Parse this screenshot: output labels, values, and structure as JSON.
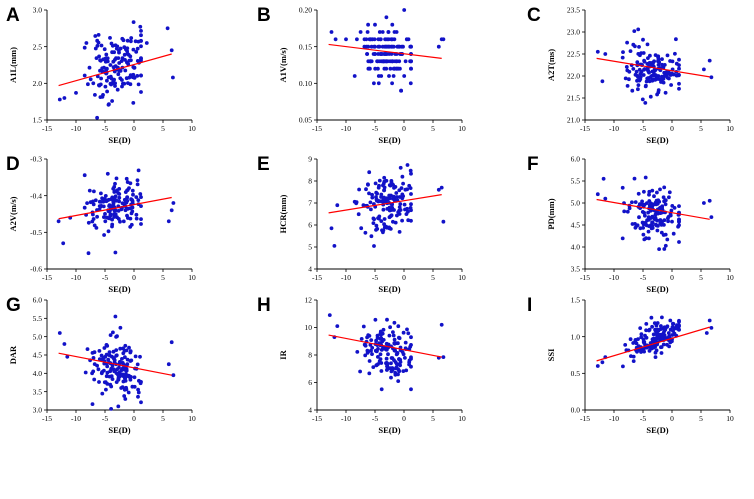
{
  "chart_data": [
    {
      "panel": "A",
      "type": "scatter",
      "xlabel": "SE(D)",
      "ylabel": "A1L(mm)",
      "xlim": [
        -15,
        10
      ],
      "ylim": [
        1.5,
        3.0
      ],
      "xticks": [
        "-15",
        "-10",
        "-5",
        "0",
        "5",
        "10"
      ],
      "yticks": [
        "1.5",
        "2.0",
        "2.5",
        "3.0"
      ],
      "fit": {
        "x": [
          -13,
          6.5
        ],
        "y": [
          1.97,
          2.4
        ]
      },
      "points": {
        "seed": 11,
        "n": 150,
        "xmean": -3,
        "xsd": 2.4,
        "slope": 0.022,
        "intercept": 2.23,
        "noise": 0.22,
        "extra": [
          [
            -12.8,
            1.78
          ],
          [
            -12,
            1.8
          ],
          [
            -10,
            1.87
          ],
          [
            5.8,
            2.75
          ],
          [
            6.5,
            2.45
          ],
          [
            6.7,
            2.08
          ],
          [
            -8.2,
            2.55
          ],
          [
            2.2,
            2.55
          ]
        ]
      }
    },
    {
      "panel": "B",
      "type": "scatter",
      "xlabel": "SE(D)",
      "ylabel": "A1V(m/s)",
      "xlim": [
        -15,
        10
      ],
      "ylim": [
        0.05,
        0.2
      ],
      "xticks": [
        "-15",
        "-10",
        "-5",
        "0",
        "5",
        "10"
      ],
      "yticks": [
        "0.05",
        "0.10",
        "0.15",
        "0.20"
      ],
      "fit": {
        "x": [
          -13,
          6.5
        ],
        "y": [
          0.153,
          0.134
        ]
      },
      "points": {
        "seed": 23,
        "n": 150,
        "xmean": -3,
        "xsd": 2.4,
        "slope": -0.001,
        "intercept": 0.14,
        "noise": 0.018,
        "round": 0.01,
        "extra": [
          [
            -12.5,
            0.17
          ],
          [
            -11.8,
            0.16
          ],
          [
            -10,
            0.16
          ],
          [
            6,
            0.15
          ],
          [
            6.5,
            0.16
          ],
          [
            6.8,
            0.16
          ],
          [
            -0.5,
            0.09
          ]
        ]
      }
    },
    {
      "panel": "C",
      "type": "scatter",
      "xlabel": "SE(D)",
      "ylabel": "A2T(ms)",
      "xlim": [
        -15,
        10
      ],
      "ylim": [
        21.0,
        23.5
      ],
      "xticks": [
        "-15",
        "-10",
        "-5",
        "0",
        "5",
        "10"
      ],
      "yticks": [
        "21.0",
        "21.5",
        "22.0",
        "22.5",
        "23.0",
        "23.5"
      ],
      "fit": {
        "x": [
          -13,
          6.5
        ],
        "y": [
          22.4,
          21.98
        ]
      },
      "points": {
        "seed": 37,
        "n": 150,
        "xmean": -3,
        "xsd": 2.4,
        "slope": -0.021,
        "intercept": 22.13,
        "noise": 0.28,
        "extra": [
          [
            -12.8,
            22.55
          ],
          [
            -12,
            21.88
          ],
          [
            -11.5,
            22.5
          ],
          [
            5.5,
            22.15
          ],
          [
            6.5,
            22.35
          ],
          [
            6.8,
            21.97
          ],
          [
            -6.5,
            23.02
          ]
        ]
      }
    },
    {
      "panel": "D",
      "type": "scatter",
      "xlabel": "SE(D)",
      "ylabel": "A2V(m/s)",
      "xlim": [
        -15,
        10
      ],
      "ylim": [
        -0.6,
        -0.3
      ],
      "xticks": [
        "-15",
        "-10",
        "-5",
        "0",
        "5",
        "10"
      ],
      "yticks": [
        "-0.6",
        "-0.5",
        "-0.4",
        "-0.3"
      ],
      "fit": {
        "x": [
          -13,
          6.5
        ],
        "y": [
          -0.463,
          -0.405
        ]
      },
      "points": {
        "seed": 41,
        "n": 150,
        "xmean": -3,
        "xsd": 2.4,
        "slope": 0.003,
        "intercept": -0.425,
        "noise": 0.035,
        "extra": [
          [
            -13,
            -0.47
          ],
          [
            -12.2,
            -0.53
          ],
          [
            -11,
            -0.46
          ],
          [
            6,
            -0.47
          ],
          [
            6.5,
            -0.44
          ],
          [
            6.8,
            -0.42
          ],
          [
            -3.2,
            -0.555
          ]
        ]
      }
    },
    {
      "panel": "E",
      "type": "scatter",
      "xlabel": "SE(D)",
      "ylabel": "HCR(mm)",
      "xlim": [
        -15,
        10
      ],
      "ylim": [
        4,
        9
      ],
      "xticks": [
        "-15",
        "-10",
        "-5",
        "0",
        "5",
        "10"
      ],
      "yticks": [
        "4",
        "5",
        "6",
        "7",
        "8",
        "9"
      ],
      "fit": {
        "x": [
          -13,
          6.5
        ],
        "y": [
          6.55,
          7.38
        ]
      },
      "points": {
        "seed": 53,
        "n": 150,
        "xmean": -3,
        "xsd": 2.4,
        "slope": 0.042,
        "intercept": 7.0,
        "noise": 0.65,
        "extra": [
          [
            -12.5,
            5.85
          ],
          [
            -12,
            5.05
          ],
          [
            -11.5,
            6.9
          ],
          [
            6,
            7.6
          ],
          [
            6.5,
            7.7
          ],
          [
            6.8,
            6.15
          ],
          [
            -6,
            8.4
          ]
        ]
      }
    },
    {
      "panel": "F",
      "type": "scatter",
      "xlabel": "SE(D)",
      "ylabel": "PD(mm)",
      "xlim": [
        -15,
        10
      ],
      "ylim": [
        3.5,
        6.0
      ],
      "xticks": [
        "-15",
        "-10",
        "-5",
        "0",
        "5",
        "10"
      ],
      "yticks": [
        "3.5",
        "4.0",
        "4.5",
        "5.0",
        "5.5",
        "6.0"
      ],
      "fit": {
        "x": [
          -13,
          6.5
        ],
        "y": [
          5.08,
          4.63
        ]
      },
      "points": {
        "seed": 67,
        "n": 150,
        "xmean": -3,
        "xsd": 2.4,
        "slope": -0.023,
        "intercept": 4.78,
        "noise": 0.3,
        "extra": [
          [
            -12.8,
            5.2
          ],
          [
            -11.8,
            5.55
          ],
          [
            -11.5,
            5.1
          ],
          [
            5.5,
            5.0
          ],
          [
            6.5,
            5.05
          ],
          [
            6.8,
            4.68
          ]
        ]
      }
    },
    {
      "panel": "G",
      "type": "scatter",
      "xlabel": "SE(D)",
      "ylabel": "DAR",
      "xlim": [
        -15,
        10
      ],
      "ylim": [
        3.0,
        6.0
      ],
      "xticks": [
        "-15",
        "-10",
        "-5",
        "0",
        "5",
        "10"
      ],
      "yticks": [
        "3.0",
        "3.5",
        "4.0",
        "4.5",
        "5.0",
        "5.5",
        "6.0"
      ],
      "fit": {
        "x": [
          -13,
          6.5
        ],
        "y": [
          4.55,
          3.95
        ]
      },
      "points": {
        "seed": 71,
        "n": 150,
        "xmean": -3,
        "xsd": 2.4,
        "slope": -0.031,
        "intercept": 4.15,
        "noise": 0.38,
        "extra": [
          [
            -12.8,
            5.1
          ],
          [
            -12,
            4.8
          ],
          [
            -11.5,
            4.45
          ],
          [
            6,
            4.25
          ],
          [
            6.5,
            4.85
          ],
          [
            6.8,
            3.95
          ],
          [
            -3.2,
            5.55
          ],
          [
            -1.5,
            3.3
          ]
        ]
      }
    },
    {
      "panel": "H",
      "type": "scatter",
      "xlabel": "SE(D)",
      "ylabel": "IR",
      "xlim": [
        -15,
        10
      ],
      "ylim": [
        4,
        12
      ],
      "xticks": [
        "-15",
        "-10",
        "-5",
        "0",
        "5",
        "10"
      ],
      "yticks": [
        "4",
        "6",
        "8",
        "10",
        "12"
      ],
      "fit": {
        "x": [
          -13,
          6.5
        ],
        "y": [
          9.45,
          7.85
        ]
      },
      "points": {
        "seed": 83,
        "n": 150,
        "xmean": -3,
        "xsd": 2.4,
        "slope": -0.082,
        "intercept": 8.3,
        "noise": 1.0,
        "extra": [
          [
            -12.8,
            10.9
          ],
          [
            -12,
            9.3
          ],
          [
            -11.5,
            10.1
          ],
          [
            6,
            7.8
          ],
          [
            6.5,
            10.2
          ],
          [
            6.8,
            7.85
          ],
          [
            -1,
            6.1
          ]
        ]
      }
    },
    {
      "panel": "I",
      "type": "scatter",
      "xlabel": "SE(D)",
      "ylabel": "SSI",
      "xlim": [
        -15,
        10
      ],
      "ylim": [
        0.0,
        1.5
      ],
      "xticks": [
        "-15",
        "-10",
        "-5",
        "0",
        "5",
        "10"
      ],
      "yticks": [
        "0.0",
        "0.5",
        "1.0",
        "1.5"
      ],
      "fit": {
        "x": [
          -13,
          6.5
        ],
        "y": [
          0.67,
          1.13
        ]
      },
      "points": {
        "seed": 97,
        "n": 150,
        "xmean": -3,
        "xsd": 2.4,
        "slope": 0.0235,
        "intercept": 0.97,
        "noise": 0.11,
        "extra": [
          [
            -12.8,
            0.6
          ],
          [
            -12,
            0.65
          ],
          [
            -11.5,
            0.72
          ],
          [
            6,
            1.05
          ],
          [
            6.5,
            1.22
          ],
          [
            6.8,
            1.12
          ],
          [
            -0.3,
            1.22
          ]
        ]
      }
    }
  ]
}
